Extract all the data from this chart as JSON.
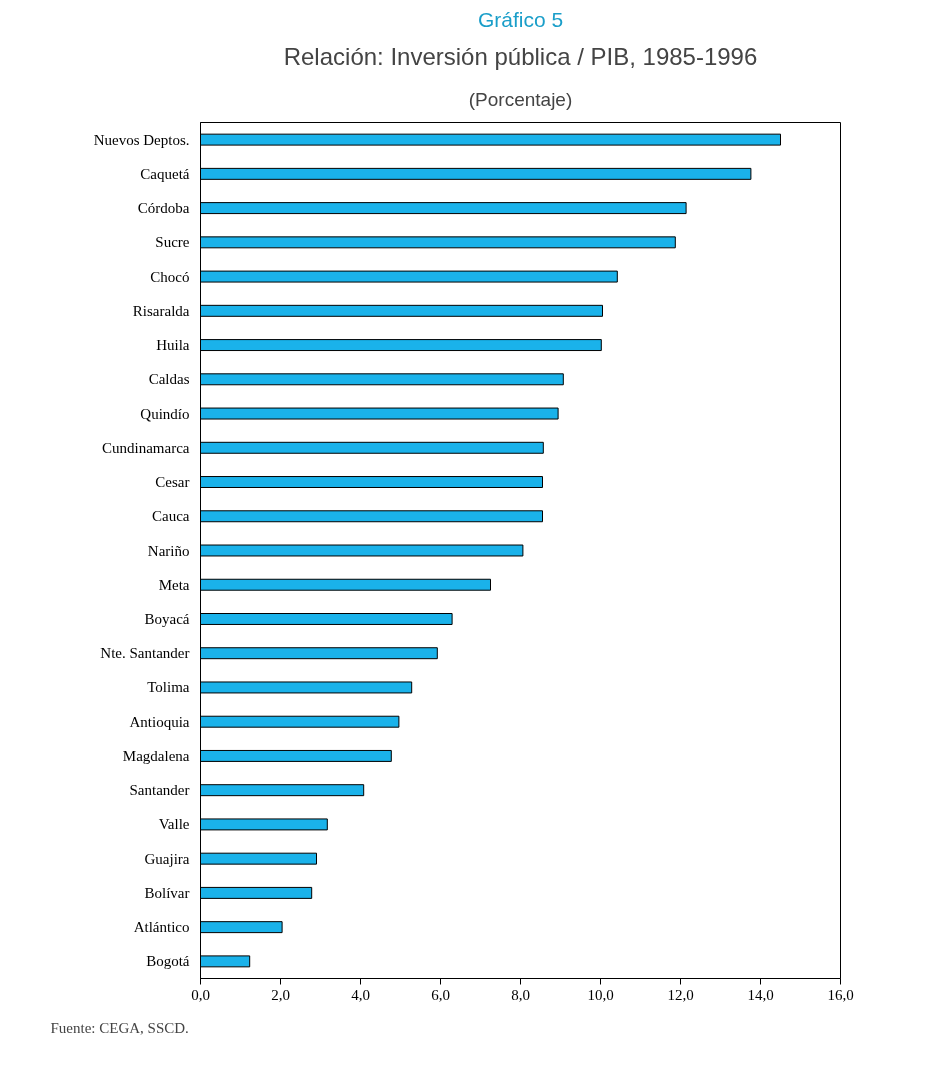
{
  "chart_data": {
    "type": "bar",
    "orientation": "horizontal",
    "title": "Relación: Inversión pública / PIB, 1985-1996",
    "subtitle": "(Porcentaje)",
    "annotations": [
      "Gráfico 5",
      "Fuente: CEGA, SSCD."
    ],
    "categories": [
      "Nuevos Deptos.",
      "Caquetá",
      "Córdoba",
      "Sucre",
      "Chocó",
      "Risaralda",
      "Huila",
      "Caldas",
      "Quindío",
      "Cundinamarca",
      "Cesar",
      "Cauca",
      "Nariño",
      "Meta",
      "Boyacá",
      "Nte. Santander",
      "Tolima",
      "Antioquia",
      "Magdalena",
      "Santander",
      "Valle",
      "Guajira",
      "Bolívar",
      "Atlántico",
      "Bogotá"
    ],
    "values": [
      14.5,
      13.76,
      12.14,
      11.87,
      10.42,
      10.05,
      10.02,
      9.07,
      8.94,
      8.57,
      8.55,
      8.55,
      8.06,
      7.25,
      6.29,
      5.92,
      5.28,
      4.96,
      4.77,
      4.08,
      3.17,
      2.9,
      2.78,
      2.04,
      1.23
    ],
    "color": "#1ab2ea",
    "xlim": [
      0,
      16
    ],
    "xticks": [
      {
        "value": 0,
        "label": "0,0"
      },
      {
        "value": 2,
        "label": "2,0"
      },
      {
        "value": 4,
        "label": "4,0"
      },
      {
        "value": 6,
        "label": "6,0"
      },
      {
        "value": 8,
        "label": "8,0"
      },
      {
        "value": 10,
        "label": "10,0"
      },
      {
        "value": 12,
        "label": "12,0"
      },
      {
        "value": 14,
        "label": "14,0"
      },
      {
        "value": 16,
        "label": "16,0"
      }
    ],
    "grid": false
  }
}
